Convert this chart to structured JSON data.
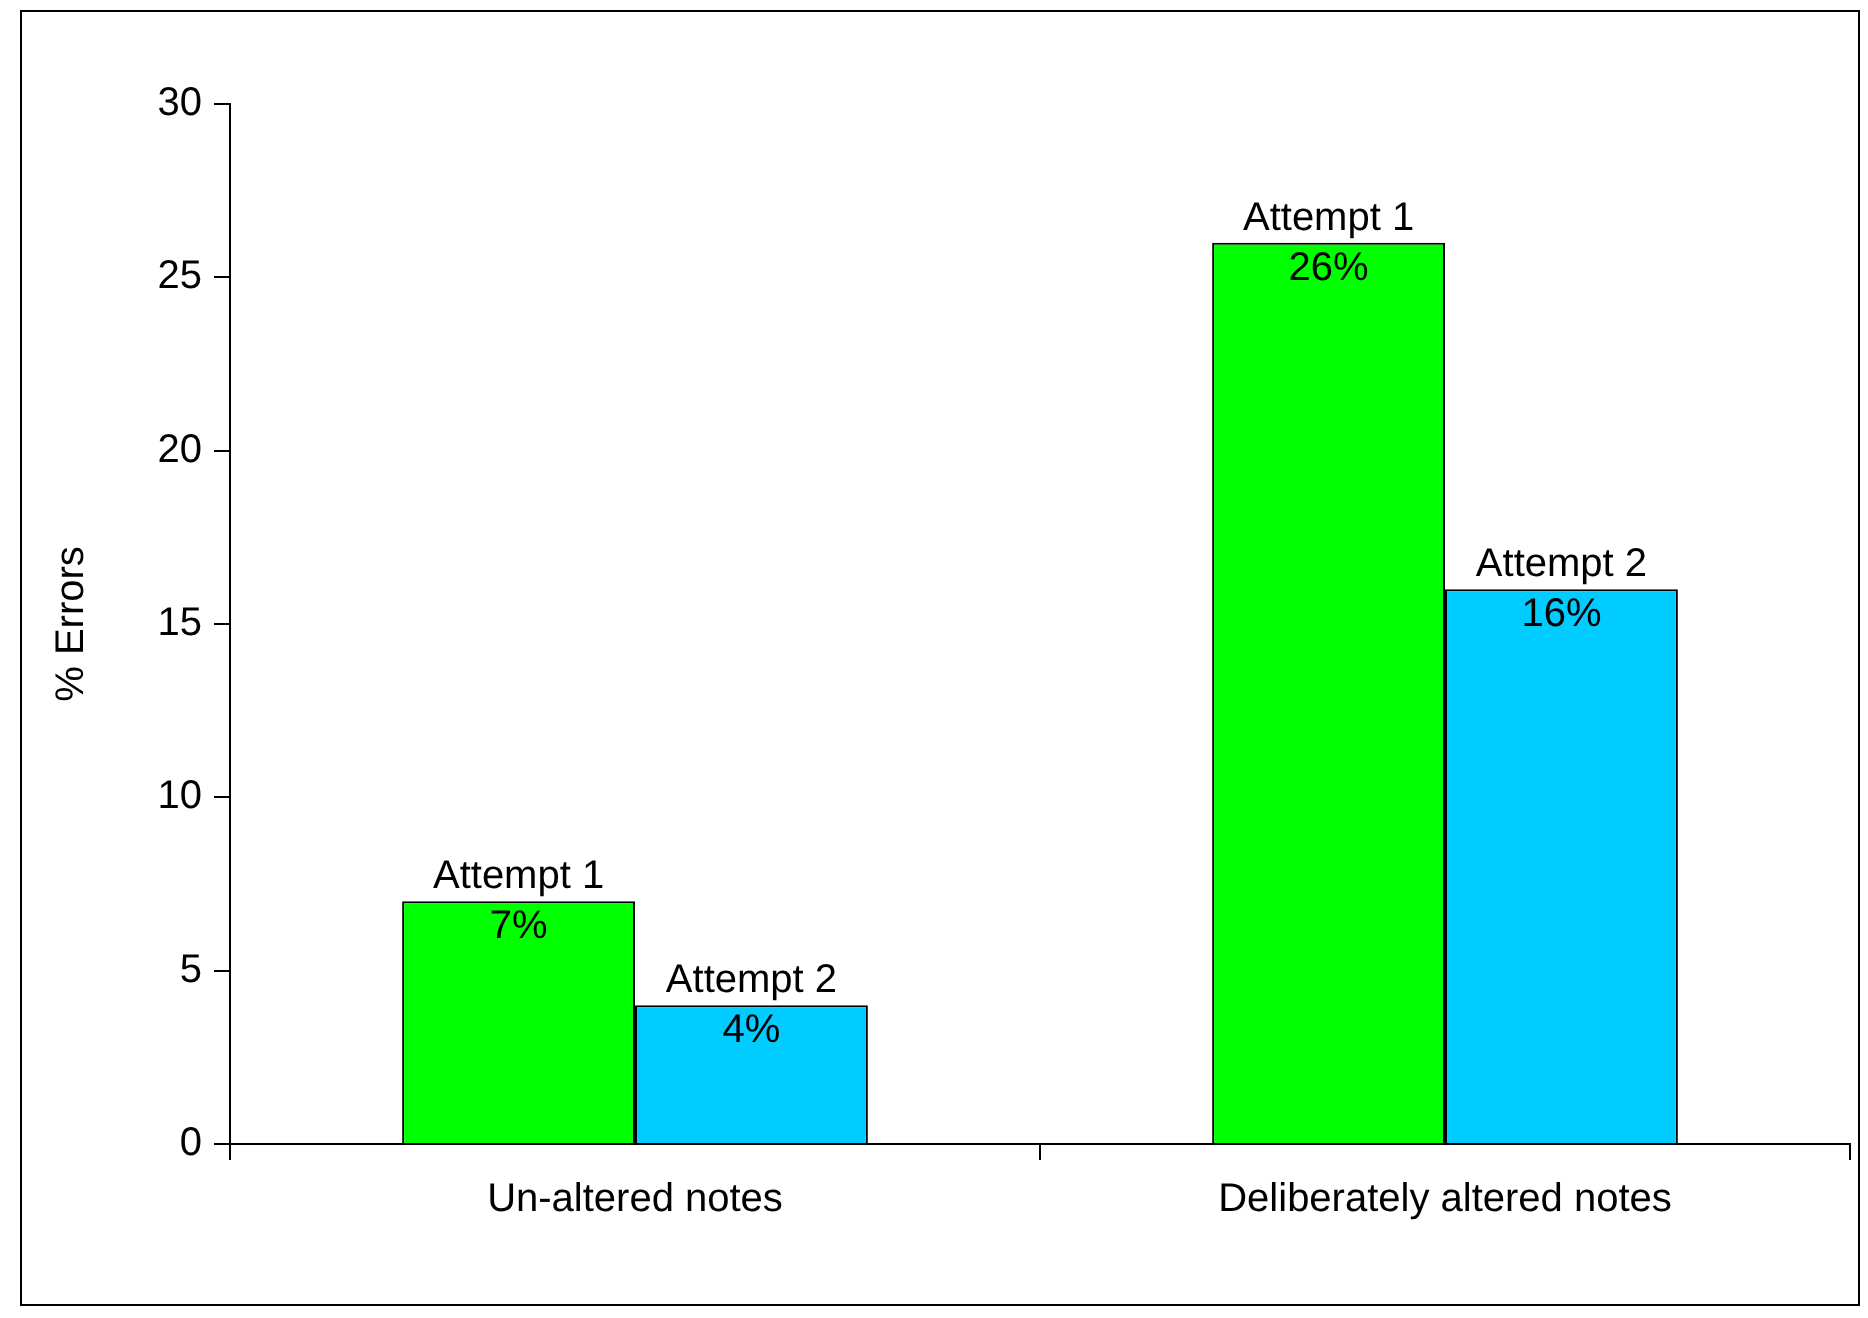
{
  "chart_data": {
    "type": "bar",
    "ylabel": "% Errors",
    "categories": [
      "Un-altered notes",
      "Deliberately altered notes"
    ],
    "series": [
      {
        "name": "Attempt 1",
        "color": "#00ff00",
        "values": [
          7,
          26
        ],
        "value_labels": [
          "7%",
          "26%"
        ]
      },
      {
        "name": "Attempt 2",
        "color": "#00ccff",
        "values": [
          4,
          16
        ],
        "value_labels": [
          "4%",
          "16%"
        ]
      }
    ],
    "ylim": [
      0,
      30
    ],
    "yticks": [
      0,
      5,
      10,
      15,
      20,
      25,
      30
    ]
  }
}
